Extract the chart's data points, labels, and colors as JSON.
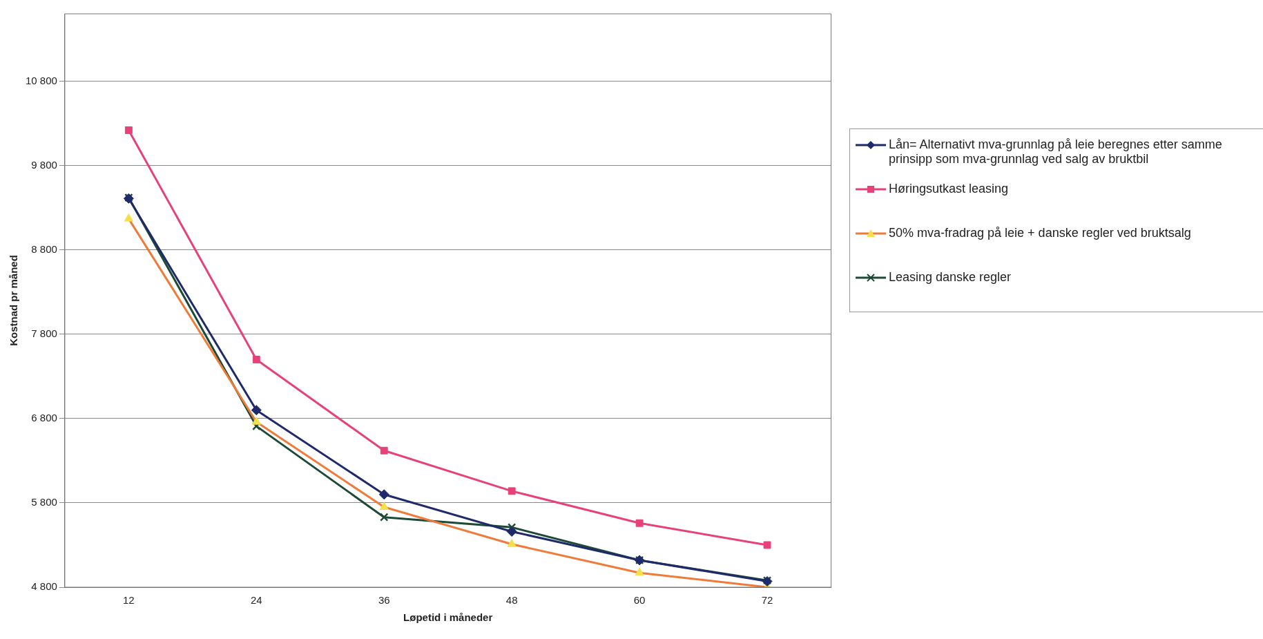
{
  "chart_data": {
    "type": "line",
    "xlabel": "Løpetid i måneder",
    "ylabel": "Kostnad pr måned",
    "categories": [
      "12",
      "24",
      "36",
      "48",
      "60",
      "72"
    ],
    "series": [
      {
        "name": "Lån= Alternativt mva-grunnlag på leie beregnes etter samme prinsipp som mva-grunnlag ved salg av bruktbil",
        "color": "#1f2a6b",
        "marker": "diamond",
        "values": [
          9410,
          6900,
          5900,
          5460,
          5120,
          4870
        ]
      },
      {
        "name": "Høringsutkast leasing",
        "color": "#e8417a",
        "marker": "square",
        "values": [
          10220,
          7500,
          6420,
          5940,
          5560,
          5300
        ]
      },
      {
        "name": "50% mva-fradrag på leie + danske regler ved bruktsalg",
        "color": "#f07a3a",
        "marker": "triangle",
        "values": [
          9170,
          6760,
          5750,
          5310,
          4970,
          4800
        ]
      },
      {
        "name": "Leasing danske regler",
        "color": "#1d4a36",
        "marker": "cross",
        "values": [
          9420,
          6710,
          5630,
          5510,
          5120,
          4880
        ]
      }
    ],
    "ylim": [
      4800,
      11600
    ],
    "yticks": [
      {
        "value": 4800,
        "label": "4 800"
      },
      {
        "value": 5800,
        "label": "5 800"
      },
      {
        "value": 6800,
        "label": "6 800"
      },
      {
        "value": 7800,
        "label": "7 800"
      },
      {
        "value": 8800,
        "label": "8 800"
      },
      {
        "value": 9800,
        "label": "9 800"
      },
      {
        "value": 10800,
        "label": "10 800"
      }
    ],
    "grid": "y",
    "legend": "right",
    "line_style": "solid"
  }
}
